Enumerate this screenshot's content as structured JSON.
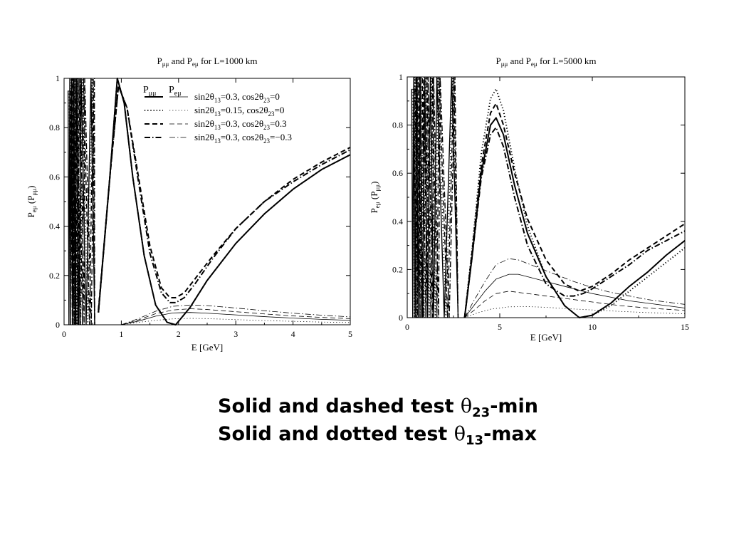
{
  "chart_data": [
    {
      "type": "line",
      "title": {
        "base": "P",
        "sub1": "μμ",
        "mid": " and P",
        "sub2": "eμ",
        "tail": " for L=1000 km"
      },
      "xlabel": "E [GeV]",
      "ylabel": {
        "a": "P",
        "a_sub": "eμ",
        "b": " (P",
        "b_sub": "μμ",
        "c": ")"
      },
      "xlim": [
        0,
        5
      ],
      "ylim": [
        0,
        1
      ],
      "xticks": [
        0,
        1,
        2,
        3,
        4,
        5
      ],
      "yticks": [
        0,
        0.2,
        0.4,
        0.6,
        0.8,
        1
      ],
      "grid": false,
      "legend_position": "top-right",
      "legend_header": {
        "col1": "P",
        "col1_sub": "μμ",
        "col2": "P",
        "col2_sub": "eμ"
      },
      "series": [
        {
          "name": "sin2θ13=0.3,  cos2θ23=0",
          "label_parts": [
            "sin2θ",
            "13",
            "=0.3,  cos2θ",
            "23",
            "=0"
          ],
          "style": "solid",
          "mumu": {
            "x": [
              0.6,
              0.8,
              0.93,
              1.05,
              1.2,
              1.4,
              1.6,
              1.8,
              1.95,
              2.2,
              2.5,
              3.0,
              3.5,
              4.0,
              4.5,
              5.0
            ],
            "y": [
              0.05,
              0.6,
              1.0,
              0.9,
              0.6,
              0.28,
              0.08,
              0.01,
              0.0,
              0.07,
              0.18,
              0.33,
              0.45,
              0.55,
              0.63,
              0.69
            ]
          },
          "emu": {
            "x": [
              1.0,
              1.3,
              1.6,
              1.9,
              2.2,
              2.5,
              3.0,
              3.5,
              4.0,
              4.5,
              5.0
            ],
            "y": [
              0.0,
              0.015,
              0.035,
              0.048,
              0.05,
              0.047,
              0.04,
              0.033,
              0.027,
              0.022,
              0.018
            ]
          }
        },
        {
          "name": "sin2θ13=0.15, cos2θ23=0",
          "label_parts": [
            "sin2θ",
            "13",
            "=0.15, cos2θ",
            "23",
            "=0"
          ],
          "style": "dotted",
          "mumu": {
            "x": [
              0.6,
              0.8,
              0.93,
              1.05,
              1.2,
              1.4,
              1.6,
              1.8,
              1.95,
              2.2,
              2.5,
              3.0,
              3.5,
              4.0,
              4.5,
              5.0
            ],
            "y": [
              0.05,
              0.6,
              1.0,
              0.9,
              0.6,
              0.28,
              0.08,
              0.01,
              0.0,
              0.07,
              0.18,
              0.33,
              0.45,
              0.55,
              0.63,
              0.69
            ]
          },
          "emu": {
            "x": [
              1.0,
              1.3,
              1.6,
              1.9,
              2.2,
              2.5,
              3.0,
              3.5,
              4.0,
              4.5,
              5.0
            ],
            "y": [
              0.0,
              0.01,
              0.018,
              0.024,
              0.026,
              0.025,
              0.021,
              0.017,
              0.014,
              0.011,
              0.009
            ]
          }
        },
        {
          "name": "sin2θ13=0.3,  cos2θ23=0.3",
          "label_parts": [
            "sin2θ",
            "13",
            "=0.3,  cos2θ",
            "23",
            "=0.3"
          ],
          "style": "dashed",
          "mumu": {
            "x": [
              0.6,
              0.8,
              0.95,
              1.1,
              1.3,
              1.5,
              1.7,
              1.85,
              1.95,
              2.1,
              2.3,
              2.6,
              3.0,
              3.5,
              4.0,
              4.5,
              5.0
            ],
            "y": [
              0.06,
              0.6,
              0.97,
              0.88,
              0.6,
              0.32,
              0.15,
              0.11,
              0.11,
              0.13,
              0.19,
              0.28,
              0.39,
              0.5,
              0.59,
              0.66,
              0.72
            ]
          },
          "emu": {
            "x": [
              1.0,
              1.3,
              1.6,
              1.9,
              2.2,
              2.5,
              3.0,
              3.5,
              4.0,
              4.5,
              5.0
            ],
            "y": [
              0.0,
              0.02,
              0.045,
              0.06,
              0.065,
              0.062,
              0.053,
              0.044,
              0.036,
              0.03,
              0.025
            ]
          }
        },
        {
          "name": "sin2θ13=0.3,  cos2θ23=−0.3",
          "label_parts": [
            "sin2θ",
            "13",
            "=0.3,  cos2θ",
            "23",
            "=−0.3"
          ],
          "style": "dashdot",
          "mumu": {
            "x": [
              0.6,
              0.8,
              0.95,
              1.1,
              1.3,
              1.5,
              1.7,
              1.85,
              1.95,
              2.1,
              2.3,
              2.6,
              3.0,
              3.5,
              4.0,
              4.5,
              5.0
            ],
            "y": [
              0.05,
              0.6,
              0.97,
              0.88,
              0.58,
              0.29,
              0.13,
              0.09,
              0.09,
              0.11,
              0.17,
              0.27,
              0.39,
              0.5,
              0.58,
              0.65,
              0.71
            ]
          },
          "emu": {
            "x": [
              1.0,
              1.3,
              1.6,
              1.9,
              2.2,
              2.5,
              3.0,
              3.5,
              4.0,
              4.5,
              5.0
            ],
            "y": [
              0.0,
              0.025,
              0.055,
              0.075,
              0.08,
              0.078,
              0.068,
              0.057,
              0.047,
              0.039,
              0.032
            ]
          }
        }
      ],
      "fast_oscillation_peaks_x": [
        0.1,
        0.13,
        0.17,
        0.22,
        0.3,
        0.47
      ]
    },
    {
      "type": "line",
      "title": {
        "base": "P",
        "sub1": "μμ",
        "mid": " and P",
        "sub2": "eμ",
        "tail": " for L=5000 km"
      },
      "xlabel": "E [GeV]",
      "ylabel": {
        "a": "P",
        "a_sub": "eμ",
        "b": " (P",
        "b_sub": "μμ",
        "c": ")"
      },
      "xlim": [
        0,
        15
      ],
      "ylim": [
        0,
        1
      ],
      "xticks": [
        0,
        5,
        10,
        15
      ],
      "yticks": [
        0,
        0.2,
        0.4,
        0.6,
        0.8,
        1
      ],
      "grid": false,
      "series": [
        {
          "style": "solid",
          "mumu": {
            "x": [
              3.1,
              3.5,
              4.0,
              4.5,
              4.8,
              5.2,
              5.8,
              6.5,
              7.5,
              8.5,
              9.3,
              10.0,
              11.0,
              12.0,
              13.0,
              14.0,
              15.0
            ],
            "y": [
              0.0,
              0.25,
              0.6,
              0.8,
              0.83,
              0.76,
              0.55,
              0.35,
              0.17,
              0.05,
              0.0,
              0.01,
              0.06,
              0.13,
              0.19,
              0.26,
              0.32
            ]
          },
          "emu": {
            "x": [
              3.1,
              3.6,
              4.2,
              4.8,
              5.5,
              6.0,
              7.0,
              8.0,
              9.0,
              10.0,
              11.0,
              12.0,
              13.0,
              14.0,
              15.0
            ],
            "y": [
              0.0,
              0.05,
              0.11,
              0.16,
              0.18,
              0.18,
              0.16,
              0.14,
              0.12,
              0.1,
              0.085,
              0.07,
              0.06,
              0.05,
              0.04
            ]
          }
        },
        {
          "style": "dotted",
          "mumu": {
            "x": [
              3.1,
              3.5,
              4.0,
              4.5,
              4.8,
              5.2,
              5.8,
              6.5,
              7.5,
              8.5,
              9.3,
              10.0,
              11.0,
              12.0,
              13.0,
              14.0,
              15.0
            ],
            "y": [
              0.0,
              0.28,
              0.68,
              0.91,
              0.95,
              0.86,
              0.62,
              0.38,
              0.17,
              0.05,
              0.0,
              0.01,
              0.05,
              0.11,
              0.17,
              0.23,
              0.29
            ]
          },
          "emu": {
            "x": [
              3.1,
              3.8,
              4.5,
              5.5,
              6.5,
              7.5,
              8.5,
              10.0,
              11.5,
              13.0,
              15.0
            ],
            "y": [
              0.0,
              0.02,
              0.035,
              0.045,
              0.046,
              0.043,
              0.038,
              0.032,
              0.026,
              0.021,
              0.016
            ]
          }
        },
        {
          "style": "dashed",
          "mumu": {
            "x": [
              3.1,
              3.5,
              4.0,
              4.5,
              4.8,
              5.2,
              5.8,
              6.5,
              7.5,
              8.5,
              9.3,
              10.0,
              11.0,
              12.0,
              13.0,
              14.0,
              15.0
            ],
            "y": [
              0.0,
              0.27,
              0.63,
              0.85,
              0.89,
              0.8,
              0.6,
              0.41,
              0.24,
              0.14,
              0.11,
              0.13,
              0.18,
              0.24,
              0.29,
              0.34,
              0.39
            ]
          },
          "emu": {
            "x": [
              3.1,
              3.6,
              4.2,
              4.8,
              5.5,
              6.5,
              7.5,
              8.5,
              10.0,
              11.5,
              13.0,
              15.0
            ],
            "y": [
              0.0,
              0.03,
              0.07,
              0.1,
              0.11,
              0.1,
              0.09,
              0.08,
              0.065,
              0.05,
              0.04,
              0.03
            ]
          }
        },
        {
          "style": "dashdot",
          "mumu": {
            "x": [
              3.1,
              3.5,
              4.0,
              4.5,
              4.8,
              5.2,
              5.8,
              6.5,
              7.5,
              8.5,
              9.0,
              9.5,
              10.0,
              11.0,
              12.0,
              13.0,
              14.0,
              15.0
            ],
            "y": [
              0.0,
              0.25,
              0.58,
              0.76,
              0.79,
              0.71,
              0.5,
              0.3,
              0.14,
              0.09,
              0.09,
              0.1,
              0.12,
              0.17,
              0.22,
              0.28,
              0.32,
              0.36
            ]
          },
          "emu": {
            "x": [
              3.1,
              3.6,
              4.2,
              4.8,
              5.5,
              6.0,
              7.0,
              8.0,
              9.0,
              10.0,
              11.0,
              12.0,
              13.0,
              14.0,
              15.0
            ],
            "y": [
              0.0,
              0.07,
              0.15,
              0.22,
              0.245,
              0.24,
              0.21,
              0.18,
              0.15,
              0.125,
              0.105,
              0.09,
              0.075,
              0.065,
              0.055
            ]
          }
        }
      ],
      "fast_oscillation_peaks_x": [
        0.35,
        0.5,
        0.7,
        0.95,
        1.25,
        1.6,
        2.4
      ]
    }
  ],
  "caption": {
    "line1": {
      "pre": "Solid and dashed test ",
      "sym": "θ",
      "sub": "23",
      "post": "-min"
    },
    "line2": {
      "pre": "Solid and dotted test ",
      "sym": "θ",
      "sub": "13",
      "post": "-max"
    }
  }
}
